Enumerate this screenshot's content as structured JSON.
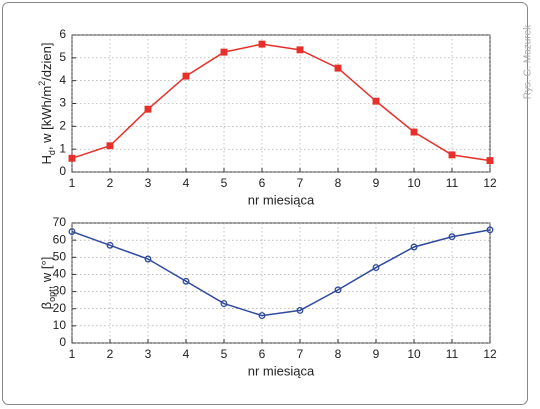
{
  "watermark": "Rys. G. Mazurek",
  "chart_data": [
    {
      "type": "line",
      "marker": "square",
      "color": "#e8302a",
      "ylabel": [
        "H",
        "d",
        ", w [kWh/m",
        "2",
        "/dzien]"
      ],
      "xlabel": "nr miesiąca",
      "x": [
        1,
        2,
        3,
        4,
        5,
        6,
        7,
        8,
        9,
        10,
        11,
        12
      ],
      "values": [
        0.6,
        1.15,
        2.75,
        4.2,
        5.25,
        5.6,
        5.35,
        4.55,
        3.1,
        1.75,
        0.75,
        0.5
      ],
      "xlim": [
        1,
        12
      ],
      "xticks": [
        1,
        2,
        3,
        4,
        5,
        6,
        7,
        8,
        9,
        10,
        11,
        12
      ],
      "ylim": [
        0,
        6
      ],
      "yticks": [
        0,
        1,
        2,
        3,
        4,
        5,
        6
      ],
      "grid": true
    },
    {
      "type": "line",
      "marker": "circle",
      "color": "#2f4a9e",
      "ylabel": [
        "β",
        "opt",
        ", w [°]"
      ],
      "xlabel": "nr miesiąca",
      "x": [
        1,
        2,
        3,
        4,
        5,
        6,
        7,
        8,
        9,
        10,
        11,
        12
      ],
      "values": [
        65,
        57,
        49,
        36,
        23,
        16,
        19,
        31,
        44,
        56,
        62,
        66
      ],
      "xlim": [
        1,
        12
      ],
      "xticks": [
        1,
        2,
        3,
        4,
        5,
        6,
        7,
        8,
        9,
        10,
        11,
        12
      ],
      "ylim": [
        0,
        70
      ],
      "yticks": [
        0,
        10,
        20,
        30,
        40,
        50,
        60,
        70
      ],
      "grid": true
    }
  ]
}
